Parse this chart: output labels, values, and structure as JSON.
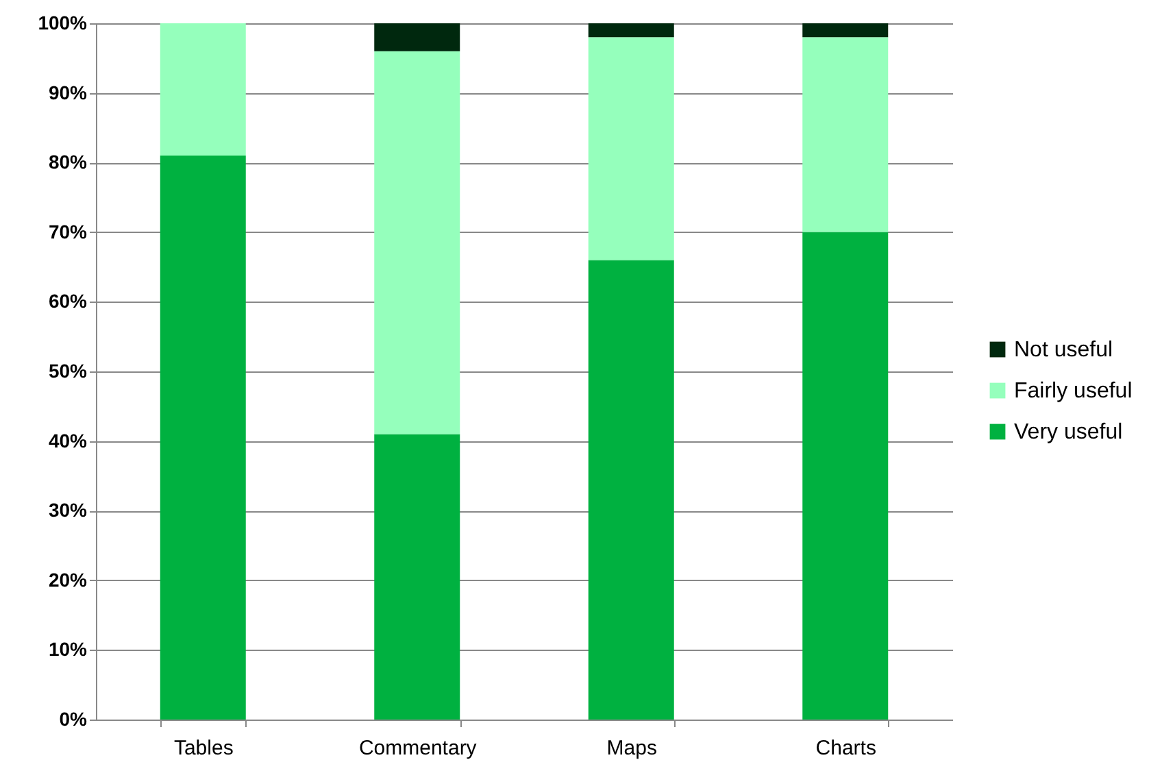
{
  "chart_data": {
    "type": "bar",
    "stacked": true,
    "categories": [
      "Tables",
      "Commentary",
      "Maps",
      "Charts"
    ],
    "series": [
      {
        "name": "Very useful",
        "color": "#00b140",
        "values": [
          81,
          41,
          66,
          70
        ]
      },
      {
        "name": "Fairly useful",
        "color": "#95ffbc",
        "values": [
          19,
          55,
          32,
          28
        ]
      },
      {
        "name": "Not useful",
        "color": "#00280e",
        "values": [
          0,
          4,
          2,
          2
        ]
      }
    ],
    "ylim": [
      0,
      100
    ],
    "yticks": [
      {
        "value": 0,
        "label": "0%"
      },
      {
        "value": 10,
        "label": "10%"
      },
      {
        "value": 20,
        "label": "20%"
      },
      {
        "value": 30,
        "label": "30%"
      },
      {
        "value": 40,
        "label": "40%"
      },
      {
        "value": 50,
        "label": "50%"
      },
      {
        "value": 60,
        "label": "60%"
      },
      {
        "value": 70,
        "label": "70%"
      },
      {
        "value": 80,
        "label": "80%"
      },
      {
        "value": 90,
        "label": "90%"
      },
      {
        "value": 100,
        "label": "100%"
      }
    ],
    "grid": "y",
    "legend": "right"
  }
}
